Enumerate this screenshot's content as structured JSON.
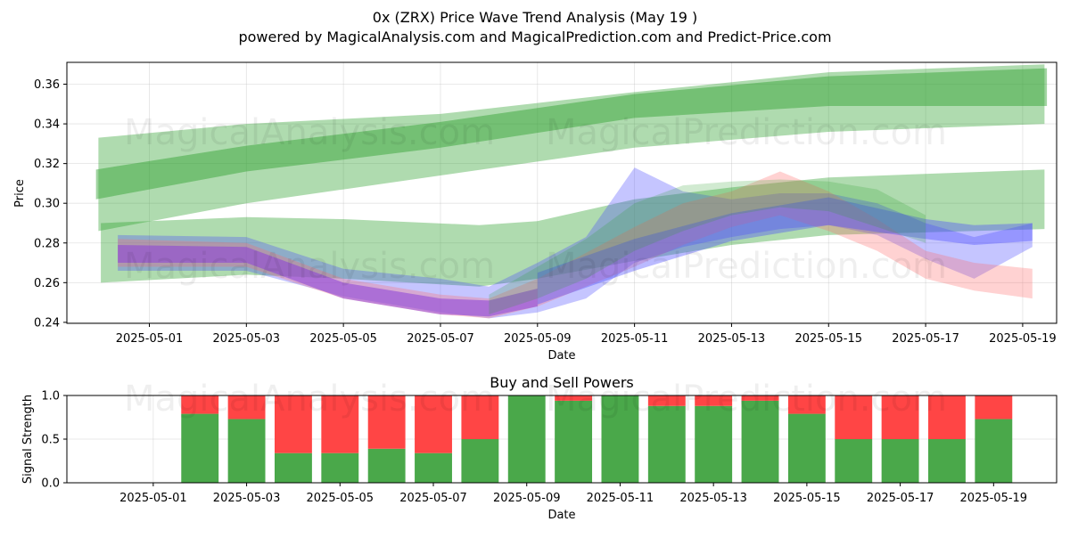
{
  "title": "0x (ZRX) Price Wave Trend Analysis (May 19 )",
  "subtitle": "powered by MagicalAnalysis.com and MagicalPrediction.com and Predict-Price.com",
  "watermarks": [
    "MagicalAnalysis.com",
    "MagicalPrediction.com"
  ],
  "colors": {
    "green": "#2ca02c",
    "blue": "#4a4aff",
    "red": "#ff6b6b",
    "purple": "#8a3fd8",
    "buy": "#4aa84a",
    "sell": "#ff4545"
  },
  "chart_data": [
    {
      "type": "area",
      "name": "price-wave-chart",
      "xlabel": "Date",
      "ylabel": "Price",
      "xlim": [
        -0.7,
        19.7
      ],
      "ylim": [
        0.2395,
        0.371
      ],
      "grid": true,
      "x_ticks": [
        1,
        3,
        5,
        7,
        9,
        11,
        13,
        15,
        17,
        19
      ],
      "x_tick_labels": [
        "2025-05-01",
        "2025-05-03",
        "2025-05-05",
        "2025-05-07",
        "2025-05-09",
        "2025-05-11",
        "2025-05-13",
        "2025-05-15",
        "2025-05-17",
        "2025-05-19"
      ],
      "y_ticks": [
        0.24,
        0.26,
        0.28,
        0.3,
        0.32,
        0.34,
        0.36
      ],
      "y_tick_labels": [
        "0.24",
        "0.26",
        "0.28",
        "0.30",
        "0.32",
        "0.34",
        "0.36"
      ],
      "x_axis_note": "x = day of May 2025",
      "bands": [
        {
          "name": "green-upper-outer",
          "color": "green",
          "opacity": 0.38,
          "x": [
            -0.05,
            3,
            7,
            11,
            15,
            19.45
          ],
          "upper": [
            0.333,
            0.34,
            0.345,
            0.356,
            0.366,
            0.37
          ],
          "lower": [
            0.286,
            0.3,
            0.314,
            0.328,
            0.336,
            0.34
          ]
        },
        {
          "name": "green-upper-inner",
          "color": "green",
          "opacity": 0.45,
          "x": [
            -0.1,
            3,
            7,
            11,
            15,
            19.5
          ],
          "upper": [
            0.317,
            0.329,
            0.341,
            0.355,
            0.364,
            0.368
          ],
          "lower": [
            0.302,
            0.316,
            0.328,
            0.343,
            0.349,
            0.349
          ]
        },
        {
          "name": "green-lower",
          "color": "green",
          "opacity": 0.38,
          "x": [
            0.0,
            3,
            5,
            7.8,
            9,
            11,
            13,
            15,
            19.45
          ],
          "upper": [
            0.29,
            0.293,
            0.292,
            0.289,
            0.291,
            0.302,
            0.308,
            0.313,
            0.317
          ],
          "lower": [
            0.26,
            0.264,
            0.262,
            0.258,
            0.262,
            0.271,
            0.279,
            0.284,
            0.287
          ]
        },
        {
          "name": "blue-wave",
          "color": "blue",
          "opacity": 0.32,
          "x": [
            0.35,
            3,
            5,
            7,
            8,
            9,
            10,
            11,
            12,
            13,
            14,
            15,
            16,
            17,
            18,
            19.2
          ],
          "upper": [
            0.284,
            0.283,
            0.267,
            0.262,
            0.258,
            0.27,
            0.283,
            0.318,
            0.306,
            0.302,
            0.305,
            0.305,
            0.3,
            0.29,
            0.283,
            0.29
          ],
          "lower": [
            0.266,
            0.266,
            0.253,
            0.245,
            0.242,
            0.245,
            0.252,
            0.27,
            0.278,
            0.283,
            0.287,
            0.289,
            0.284,
            0.272,
            0.262,
            0.278
          ]
        },
        {
          "name": "red-wave",
          "color": "red",
          "opacity": 0.3,
          "x": [
            0.35,
            3,
            5,
            7,
            8,
            9,
            10,
            11,
            12,
            13,
            14,
            15,
            16,
            17,
            18,
            19.2
          ],
          "upper": [
            0.282,
            0.28,
            0.262,
            0.254,
            0.252,
            0.262,
            0.275,
            0.288,
            0.3,
            0.306,
            0.316,
            0.306,
            0.292,
            0.276,
            0.27,
            0.267
          ],
          "lower": [
            0.268,
            0.268,
            0.252,
            0.244,
            0.242,
            0.248,
            0.258,
            0.268,
            0.279,
            0.288,
            0.294,
            0.286,
            0.276,
            0.262,
            0.256,
            0.252
          ]
        },
        {
          "name": "purple-core",
          "color": "purple",
          "opacity": 0.55,
          "x": [
            0.35,
            3,
            5,
            7,
            8,
            9
          ],
          "upper": [
            0.279,
            0.278,
            0.26,
            0.252,
            0.251,
            0.257
          ],
          "lower": [
            0.27,
            0.27,
            0.252,
            0.244,
            0.243,
            0.248
          ]
        },
        {
          "name": "blue-core",
          "color": "blue",
          "opacity": 0.38,
          "x": [
            9,
            11,
            13,
            15,
            17,
            18,
            19.2
          ],
          "upper": [
            0.265,
            0.282,
            0.295,
            0.303,
            0.292,
            0.289,
            0.29
          ],
          "lower": [
            0.249,
            0.266,
            0.281,
            0.289,
            0.282,
            0.279,
            0.281
          ]
        },
        {
          "name": "amber-blend",
          "color": "green",
          "opacity": 0.22,
          "x": [
            8,
            9,
            10,
            11,
            12,
            13,
            14,
            15,
            16,
            17
          ],
          "upper": [
            0.254,
            0.268,
            0.282,
            0.3,
            0.309,
            0.311,
            0.312,
            0.311,
            0.307,
            0.294
          ],
          "lower": [
            0.244,
            0.252,
            0.262,
            0.276,
            0.286,
            0.294,
            0.298,
            0.296,
            0.288,
            0.28
          ]
        }
      ]
    },
    {
      "type": "bar",
      "name": "buy-sell-powers-chart",
      "title": "Buy and Sell Powers",
      "xlabel": "Date",
      "ylabel": "Signal Strength",
      "xlim": [
        -0.85,
        20.35
      ],
      "ylim": [
        0,
        1
      ],
      "y_ticks": [
        0.0,
        0.5,
        1.0
      ],
      "y_tick_labels": [
        "0.0",
        "0.5",
        "1.0"
      ],
      "x_ticks": [
        1,
        3,
        5,
        7,
        9,
        11,
        13,
        15,
        17,
        19
      ],
      "x_tick_labels": [
        "2025-05-01",
        "2025-05-03",
        "2025-05-05",
        "2025-05-07",
        "2025-05-09",
        "2025-05-11",
        "2025-05-13",
        "2025-05-15",
        "2025-05-17",
        "2025-05-19"
      ],
      "grid": true,
      "categories": [
        2,
        3,
        4,
        5,
        6,
        7,
        8,
        9,
        10,
        11,
        12,
        13,
        14,
        15,
        16,
        17,
        18,
        19
      ],
      "series": [
        {
          "name": "Buy",
          "color": "buy",
          "values": [
            0.79,
            0.73,
            0.34,
            0.34,
            0.39,
            0.34,
            0.5,
            1.0,
            0.94,
            1.0,
            0.88,
            0.88,
            0.94,
            0.79,
            0.5,
            0.5,
            0.5,
            0.73
          ]
        },
        {
          "name": "Sell",
          "color": "sell",
          "values": [
            0.21,
            0.27,
            0.66,
            0.66,
            0.61,
            0.66,
            0.5,
            0.0,
            0.06,
            0.0,
            0.12,
            0.12,
            0.06,
            0.21,
            0.5,
            0.5,
            0.5,
            0.27
          ]
        }
      ]
    }
  ]
}
